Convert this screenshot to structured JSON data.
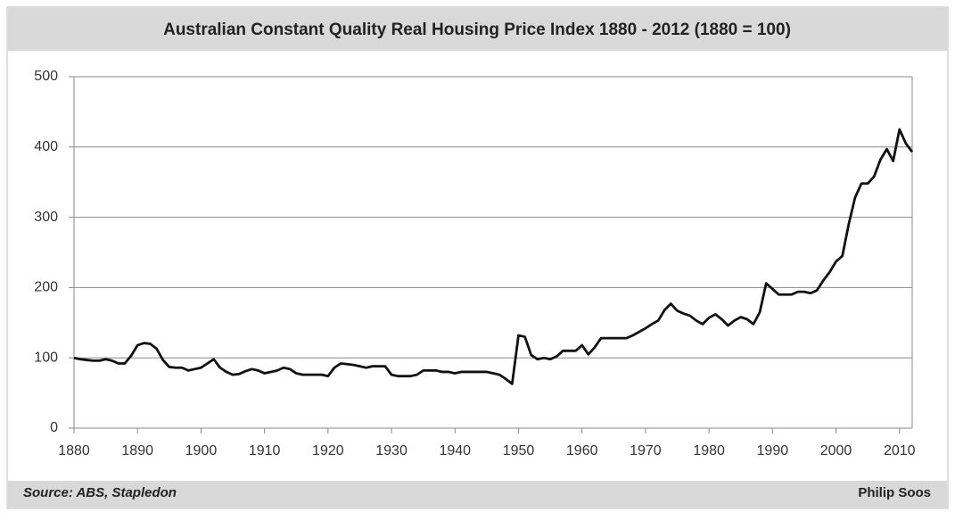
{
  "chart_data": {
    "type": "line",
    "title": "Australian Constant Quality Real Housing Price Index 1880 - 2012 (1880 = 100)",
    "source": "Source: ABS, Stapledon",
    "author": "Philip Soos",
    "x": [
      1880,
      1881,
      1882,
      1883,
      1884,
      1885,
      1886,
      1887,
      1888,
      1889,
      1890,
      1891,
      1892,
      1893,
      1894,
      1895,
      1896,
      1897,
      1898,
      1899,
      1900,
      1901,
      1902,
      1903,
      1904,
      1905,
      1906,
      1907,
      1908,
      1909,
      1910,
      1911,
      1912,
      1913,
      1914,
      1915,
      1916,
      1917,
      1918,
      1919,
      1920,
      1921,
      1922,
      1923,
      1924,
      1925,
      1926,
      1927,
      1928,
      1929,
      1930,
      1931,
      1932,
      1933,
      1934,
      1935,
      1936,
      1937,
      1938,
      1939,
      1940,
      1941,
      1942,
      1943,
      1944,
      1945,
      1946,
      1947,
      1948,
      1949,
      1950,
      1951,
      1952,
      1953,
      1954,
      1955,
      1956,
      1957,
      1958,
      1959,
      1960,
      1961,
      1962,
      1963,
      1964,
      1965,
      1966,
      1967,
      1968,
      1969,
      1970,
      1971,
      1972,
      1973,
      1974,
      1975,
      1976,
      1977,
      1978,
      1979,
      1980,
      1981,
      1982,
      1983,
      1984,
      1985,
      1986,
      1987,
      1988,
      1989,
      1990,
      1991,
      1992,
      1993,
      1994,
      1995,
      1996,
      1997,
      1998,
      1999,
      2000,
      2001,
      2002,
      2003,
      2004,
      2005,
      2006,
      2007,
      2008,
      2009,
      2010,
      2011,
      2012
    ],
    "series": [
      {
        "name": "Index",
        "color": "#111111",
        "values": [
          100,
          98,
          97,
          96,
          96,
          98,
          96,
          92,
          92,
          103,
          118,
          121,
          120,
          113,
          97,
          87,
          86,
          86,
          82,
          84,
          86,
          92,
          98,
          86,
          80,
          76,
          77,
          81,
          84,
          82,
          78,
          80,
          82,
          86,
          84,
          78,
          76,
          76,
          76,
          76,
          74,
          86,
          92,
          91,
          90,
          88,
          86,
          88,
          88,
          88,
          76,
          74,
          74,
          74,
          76,
          82,
          82,
          82,
          80,
          80,
          78,
          80,
          80,
          80,
          80,
          80,
          78,
          76,
          70,
          63,
          132,
          130,
          104,
          98,
          100,
          98,
          102,
          110,
          110,
          110,
          118,
          105,
          115,
          128,
          128,
          128,
          128,
          128,
          132,
          137,
          142,
          148,
          153,
          168,
          177,
          167,
          163,
          160,
          153,
          148,
          157,
          162,
          155,
          146,
          153,
          158,
          155,
          148,
          165,
          206,
          198,
          190,
          190,
          190,
          194,
          194,
          192,
          196,
          210,
          222,
          237,
          245,
          290,
          328,
          348,
          348,
          358,
          382,
          397,
          380,
          425,
          405,
          393
        ]
      }
    ],
    "xlim": [
      1880,
      2012
    ],
    "xticks": [
      1880,
      1890,
      1900,
      1910,
      1920,
      1930,
      1940,
      1950,
      1960,
      1970,
      1980,
      1990,
      2000,
      2010
    ],
    "ylim": [
      0,
      500
    ],
    "yticks": [
      0,
      100,
      200,
      300,
      400,
      500
    ],
    "grid": true
  }
}
